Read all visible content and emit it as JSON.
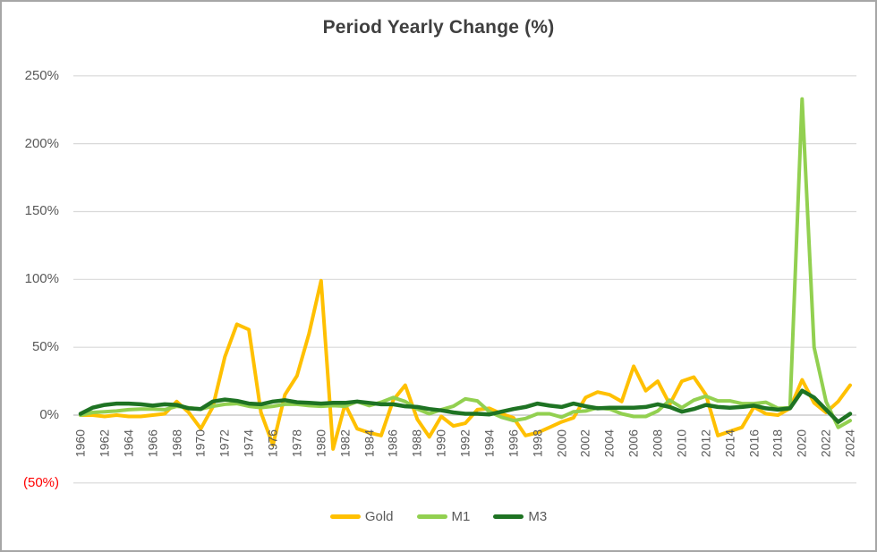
{
  "title": "Period Yearly Change (%)",
  "colors": {
    "gold_series": "#FFC000",
    "m1_series": "#92D050",
    "m3_series": "#1E7323",
    "gridline": "#D9D9D9",
    "zero_axis": "#BFBFBF",
    "axis_text": "#595959",
    "negative_tick_text": "#FF0000",
    "title_text": "#3F3F3F"
  },
  "y_axis": {
    "ticks": [
      {
        "label": "250%",
        "value": 250,
        "color": "#595959"
      },
      {
        "label": "200%",
        "value": 200,
        "color": "#595959"
      },
      {
        "label": "150%",
        "value": 150,
        "color": "#595959"
      },
      {
        "label": "100%",
        "value": 100,
        "color": "#595959"
      },
      {
        "label": "50%",
        "value": 50,
        "color": "#595959"
      },
      {
        "label": "0%",
        "value": 0,
        "color": "#595959"
      },
      {
        "label": "(50%)",
        "value": -50,
        "color": "#FF0000"
      }
    ]
  },
  "x_axis": {
    "tick_labels": [
      "1960",
      "1962",
      "1964",
      "1966",
      "1968",
      "1970",
      "1972",
      "1974",
      "1976",
      "1978",
      "1980",
      "1982",
      "1984",
      "1986",
      "1988",
      "1990",
      "1992",
      "1994",
      "1996",
      "1998",
      "2000",
      "2002",
      "2004",
      "2006",
      "2008",
      "2010",
      "2012",
      "2014",
      "2016",
      "2018",
      "2020",
      "2022",
      "2024"
    ]
  },
  "legend": [
    {
      "label": "Gold",
      "color": "#FFC000"
    },
    {
      "label": "M1",
      "color": "#92D050"
    },
    {
      "label": "M3",
      "color": "#1E7323"
    }
  ],
  "chart_data": {
    "type": "line",
    "title": "Period Yearly Change (%)",
    "xlabel": "",
    "ylabel": "",
    "ylim": [
      -50,
      250
    ],
    "grid": "horizontal",
    "legend_position": "bottom",
    "x": [
      1960,
      1961,
      1962,
      1963,
      1964,
      1965,
      1966,
      1967,
      1968,
      1969,
      1970,
      1971,
      1972,
      1973,
      1974,
      1975,
      1976,
      1977,
      1978,
      1979,
      1980,
      1981,
      1982,
      1983,
      1984,
      1985,
      1986,
      1987,
      1988,
      1989,
      1990,
      1991,
      1992,
      1993,
      1994,
      1995,
      1996,
      1997,
      1998,
      1999,
      2000,
      2001,
      2002,
      2003,
      2004,
      2005,
      2006,
      2007,
      2008,
      2009,
      2010,
      2011,
      2012,
      2013,
      2014,
      2015,
      2016,
      2017,
      2018,
      2019,
      2020,
      2021,
      2022,
      2023,
      2024
    ],
    "series": [
      {
        "name": "Gold",
        "color": "#FFC000",
        "values": [
          0,
          0,
          -1,
          0,
          -1,
          -1,
          0,
          1,
          10,
          2,
          -10,
          6,
          43,
          67,
          63,
          2,
          -22,
          15,
          29,
          60,
          99,
          -25,
          8,
          -10,
          -13,
          -15,
          11,
          22,
          -3,
          -16,
          -1,
          -8,
          -6,
          4,
          5,
          1,
          -2,
          -15,
          -13,
          -9,
          -5,
          -2,
          13,
          17,
          15,
          10,
          36,
          18,
          25,
          8,
          25,
          28,
          15,
          -15,
          -12,
          -9,
          6,
          1,
          0,
          5,
          26,
          9,
          2,
          10,
          22
        ]
      },
      {
        "name": "M1",
        "color": "#92D050",
        "values": [
          0,
          2,
          2.5,
          3,
          4,
          4.5,
          4.5,
          4,
          6.5,
          5.5,
          4.5,
          6.5,
          8,
          8.5,
          6.5,
          5.5,
          6.5,
          8,
          8,
          7,
          6.5,
          7,
          6.5,
          10,
          7,
          9.5,
          13,
          10,
          4.5,
          1,
          4,
          6.5,
          12,
          10.5,
          2.5,
          -1.5,
          -4,
          -2.5,
          1,
          1,
          -1.5,
          2.5,
          3,
          5.5,
          4.5,
          1,
          -1,
          -1,
          3,
          11,
          5.5,
          11,
          14,
          10.5,
          10.5,
          8.5,
          8.5,
          9.5,
          5,
          5.5,
          233,
          50,
          10,
          -9,
          -4
        ]
      },
      {
        "name": "M3",
        "color": "#1E7323",
        "values": [
          1,
          5.5,
          7.5,
          8.5,
          8.5,
          8,
          7,
          8,
          7.5,
          5,
          4.5,
          10,
          11.5,
          10.5,
          8.5,
          8,
          10,
          11,
          9.5,
          9,
          8.5,
          9,
          9,
          10,
          9,
          8,
          8,
          6.5,
          6,
          4.5,
          3.5,
          2,
          1,
          1,
          0.5,
          2.5,
          4.5,
          6,
          8.5,
          7,
          6,
          8.5,
          6.5,
          5,
          5.5,
          5.5,
          5.5,
          6,
          8,
          6,
          2.5,
          4.5,
          7.5,
          6,
          5.5,
          6,
          7,
          5,
          4,
          5,
          18,
          13,
          4,
          -5,
          1
        ]
      }
    ]
  }
}
